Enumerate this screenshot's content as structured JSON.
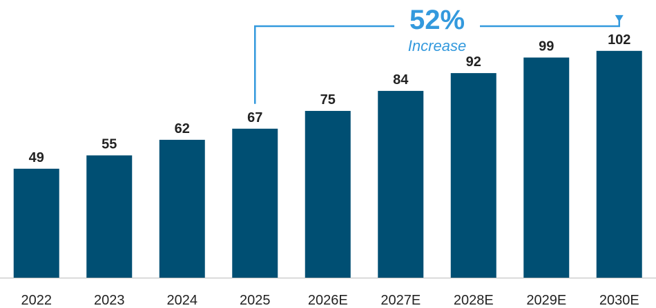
{
  "chart_data": {
    "type": "bar",
    "title": "",
    "xlabel": "",
    "ylabel": "",
    "categories": [
      "2022",
      "2023",
      "2024",
      "2025",
      "2026E",
      "2027E",
      "2028E",
      "2029E",
      "2030E"
    ],
    "values": [
      49,
      55,
      62,
      67,
      75,
      84,
      92,
      99,
      102
    ],
    "ylim": [
      0,
      110
    ],
    "grid": false,
    "bar_color": "#004f73",
    "annotation": {
      "value": "52%",
      "text": "Increase",
      "from_category": "2025",
      "to_category": "2030E",
      "color": "#3399dd"
    }
  }
}
